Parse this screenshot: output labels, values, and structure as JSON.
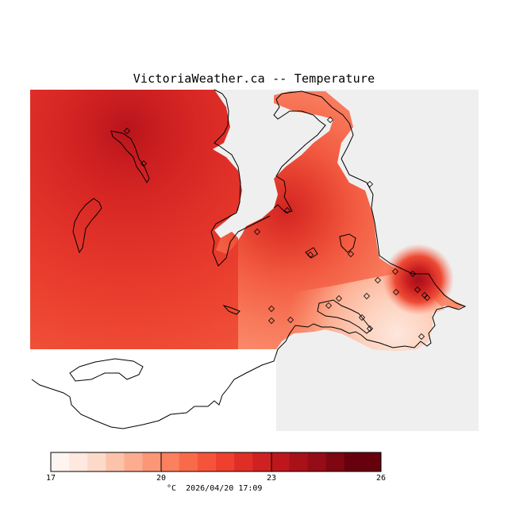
{
  "title": "VictoriaWeather.ca -- Temperature",
  "colorbar": {
    "min_label": "17",
    "mid1_label": "20",
    "mid2_label": "23",
    "max_label": "26",
    "range": [
      17,
      26
    ],
    "steps": 18,
    "colors": [
      "#fff5f0",
      "#fee8df",
      "#fdd9c9",
      "#fcc3ab",
      "#fcad90",
      "#fb9676",
      "#fb805f",
      "#f96a4a",
      "#f5543b",
      "#ee3f2f",
      "#e02e27",
      "#d02122",
      "#bd171c",
      "#a91119",
      "#960c16",
      "#7e0712",
      "#67000d",
      "#67000d"
    ]
  },
  "footer": {
    "units": "°C",
    "timestamp": "2026/04/20 17:09"
  },
  "stations": 24
}
